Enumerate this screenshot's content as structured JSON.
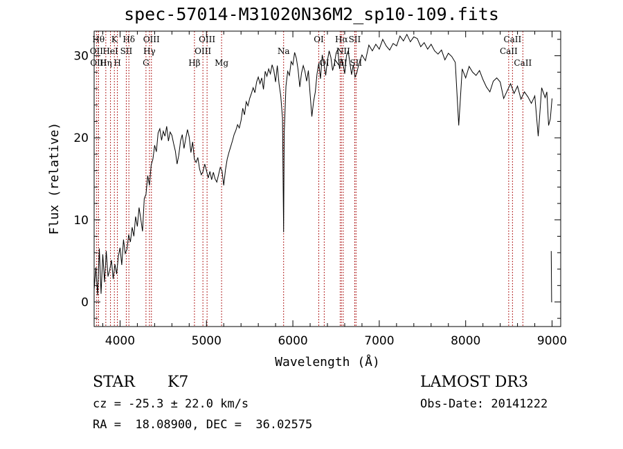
{
  "chart_data": {
    "type": "line",
    "title": "spec-57014-M31020N36M2_sp10-109.fits",
    "xlabel": "Wavelength (Å)",
    "ylabel": "Flux (relative)",
    "xlim": [
      3700,
      9100
    ],
    "ylim": [
      -3,
      33
    ],
    "xticks": [
      4000,
      5000,
      6000,
      7000,
      8000,
      9000
    ],
    "yticks": [
      0,
      10,
      20,
      30
    ],
    "series": [
      {
        "name": "spectrum",
        "x": [
          3700,
          3720,
          3740,
          3760,
          3780,
          3800,
          3820,
          3840,
          3860,
          3880,
          3900,
          3920,
          3940,
          3960,
          3980,
          4000,
          4020,
          4040,
          4060,
          4080,
          4100,
          4120,
          4140,
          4160,
          4180,
          4200,
          4220,
          4240,
          4260,
          4280,
          4300,
          4320,
          4340,
          4360,
          4380,
          4400,
          4420,
          4440,
          4460,
          4480,
          4500,
          4520,
          4540,
          4560,
          4580,
          4600,
          4620,
          4640,
          4660,
          4680,
          4700,
          4720,
          4740,
          4760,
          4780,
          4800,
          4820,
          4840,
          4860,
          4880,
          4900,
          4920,
          4940,
          4960,
          4980,
          5000,
          5020,
          5040,
          5060,
          5080,
          5100,
          5120,
          5140,
          5160,
          5180,
          5200,
          5220,
          5240,
          5260,
          5280,
          5300,
          5320,
          5340,
          5360,
          5380,
          5400,
          5420,
          5440,
          5460,
          5480,
          5500,
          5520,
          5540,
          5560,
          5580,
          5600,
          5620,
          5640,
          5660,
          5680,
          5700,
          5720,
          5740,
          5760,
          5780,
          5800,
          5820,
          5840,
          5860,
          5880,
          5893,
          5900,
          5920,
          5940,
          5960,
          5980,
          6000,
          6020,
          6040,
          6060,
          6080,
          6100,
          6120,
          6140,
          6160,
          6180,
          6200,
          6220,
          6240,
          6260,
          6280,
          6300,
          6320,
          6340,
          6360,
          6380,
          6400,
          6420,
          6440,
          6460,
          6480,
          6500,
          6520,
          6540,
          6560,
          6580,
          6600,
          6620,
          6640,
          6660,
          6680,
          6700,
          6720,
          6740,
          6760,
          6780,
          6800,
          6840,
          6880,
          6920,
          6960,
          7000,
          7040,
          7080,
          7120,
          7160,
          7200,
          7240,
          7280,
          7320,
          7360,
          7400,
          7440,
          7480,
          7520,
          7560,
          7600,
          7640,
          7680,
          7720,
          7760,
          7800,
          7840,
          7880,
          7920,
          7960,
          8000,
          8040,
          8080,
          8120,
          8160,
          8200,
          8240,
          8280,
          8320,
          8360,
          8400,
          8440,
          8480,
          8520,
          8560,
          8600,
          8640,
          8680,
          8720,
          8760,
          8800,
          8840,
          8880,
          8920,
          8940,
          8960,
          8980,
          9000
        ],
        "y": [
          1.5,
          4.2,
          0.8,
          6.5,
          1.0,
          5.8,
          2.4,
          6.2,
          3.1,
          3.9,
          5.1,
          2.8,
          4.6,
          3.4,
          5.5,
          6.6,
          4.5,
          7.6,
          5.9,
          6.4,
          8.2,
          7.3,
          9.1,
          8.0,
          10.4,
          9.2,
          11.5,
          10.1,
          8.6,
          12.6,
          13.1,
          15.4,
          14.2,
          16.7,
          17.4,
          19.1,
          18.3,
          20.6,
          21.1,
          19.7,
          20.8,
          20.2,
          21.4,
          19.6,
          20.7,
          20.3,
          19.3,
          18.4,
          16.8,
          17.9,
          19.6,
          20.4,
          18.7,
          19.9,
          21.0,
          20.1,
          18.2,
          19.5,
          17.4,
          17.0,
          17.6,
          16.2,
          15.5,
          15.9,
          16.8,
          16.0,
          15.1,
          15.9,
          14.9,
          15.8,
          15.0,
          14.6,
          15.5,
          16.4,
          16.0,
          14.2,
          16.1,
          17.4,
          18.2,
          18.9,
          19.6,
          20.4,
          20.9,
          21.6,
          21.2,
          22.1,
          23.6,
          22.8,
          24.4,
          23.9,
          24.8,
          25.4,
          26.1,
          25.5,
          26.8,
          27.4,
          26.6,
          27.3,
          25.9,
          28.1,
          27.5,
          28.4,
          27.8,
          28.9,
          28.2,
          26.8,
          28.8,
          26.6,
          25.1,
          22.4,
          8.5,
          20.6,
          26.3,
          28.1,
          27.6,
          29.3,
          28.9,
          30.4,
          29.7,
          28.3,
          26.2,
          27.9,
          28.8,
          28.1,
          26.9,
          28.2,
          25.3,
          22.6,
          24.4,
          25.6,
          27.8,
          29.1,
          27.2,
          30.1,
          29.0,
          27.6,
          29.4,
          30.6,
          29.8,
          28.2,
          29.0,
          30.3,
          30.8,
          28.4,
          29.6,
          29.1,
          27.8,
          30.0,
          30.6,
          29.1,
          27.7,
          28.9,
          27.4,
          27.9,
          28.8,
          29.5,
          30.1,
          29.4,
          31.3,
          30.6,
          31.4,
          30.8,
          32.0,
          31.2,
          30.7,
          31.5,
          31.2,
          32.4,
          31.8,
          32.6,
          31.7,
          32.3,
          32.1,
          31.1,
          31.6,
          30.8,
          31.4,
          30.6,
          30.2,
          30.7,
          29.5,
          30.3,
          29.9,
          29.2,
          21.5,
          28.4,
          27.3,
          28.7,
          28.0,
          27.6,
          28.2,
          27.1,
          26.2,
          25.6,
          26.9,
          27.3,
          26.8,
          24.8,
          25.7,
          26.6,
          25.4,
          26.3,
          24.7,
          25.6,
          25.0,
          24.2,
          25.1,
          20.2,
          26.1,
          24.9,
          25.6,
          21.5,
          22.3,
          24.8
        ]
      },
      {
        "name": "spike",
        "x": [
          8990,
          8995,
          9000
        ],
        "y": [
          6.2,
          0.0,
          0.0
        ]
      }
    ],
    "lines": [
      {
        "x": 3750,
        "labels": [
          "Hθ"
        ],
        "row": 0
      },
      {
        "x": 3727,
        "labels": [
          "OII"
        ],
        "row": 1
      },
      {
        "x": 3750,
        "labels": [
          "OIII"
        ],
        "row": 2
      },
      {
        "x": 3835,
        "labels": [
          "Hη"
        ],
        "row": 2
      },
      {
        "x": 3889,
        "labels": [
          "HeI"
        ],
        "row": 1
      },
      {
        "x": 3934,
        "labels": [
          "K"
        ],
        "row": 0
      },
      {
        "x": 3969,
        "labels": [
          "H"
        ],
        "row": 2
      },
      {
        "x": 4072,
        "labels": [
          "SII"
        ],
        "row": 1
      },
      {
        "x": 4102,
        "labels": [
          "Hδ"
        ],
        "row": 0
      },
      {
        "x": 4300,
        "labels": [
          "G"
        ],
        "row": 2
      },
      {
        "x": 4340,
        "labels": [
          "Hγ"
        ],
        "row": 1
      },
      {
        "x": 4363,
        "labels": [
          "OIII"
        ],
        "row": 0
      },
      {
        "x": 4861,
        "labels": [
          "Hβ"
        ],
        "row": 2
      },
      {
        "x": 4959,
        "labels": [
          "OIII"
        ],
        "row": 1
      },
      {
        "x": 5007,
        "labels": [
          "OIII"
        ],
        "row": 0
      },
      {
        "x": 5175,
        "labels": [
          "Mg"
        ],
        "row": 2
      },
      {
        "x": 5893,
        "labels": [
          "Na"
        ],
        "row": 1
      },
      {
        "x": 6300,
        "labels": [
          "OI"
        ],
        "row": 0
      },
      {
        "x": 6363,
        "labels": [
          "OI"
        ],
        "row": 2
      },
      {
        "x": 6548,
        "labels": [
          "NII"
        ],
        "row": 2
      },
      {
        "x": 6563,
        "labels": [
          "Hα"
        ],
        "row": 0
      },
      {
        "x": 6583,
        "labels": [
          "NII"
        ],
        "row": 1
      },
      {
        "x": 6716,
        "labels": [
          "SII"
        ],
        "row": 0
      },
      {
        "x": 6731,
        "labels": [
          "SII"
        ],
        "row": 2
      },
      {
        "x": 8498,
        "labels": [
          "CaII"
        ],
        "row": 1
      },
      {
        "x": 8542,
        "labels": [
          "CaII"
        ],
        "row": 0
      },
      {
        "x": 8662,
        "labels": [
          "CaII"
        ],
        "row": 2
      }
    ]
  },
  "info": {
    "object_type": "STAR",
    "subclass": "K7",
    "survey": "LAMOST DR3",
    "cz": "cz = -25.3 ± 22.0 km/s",
    "obs_date": "Obs-Date: 20141222",
    "coords": "RA =  18.08900, DEC =  36.02575"
  }
}
